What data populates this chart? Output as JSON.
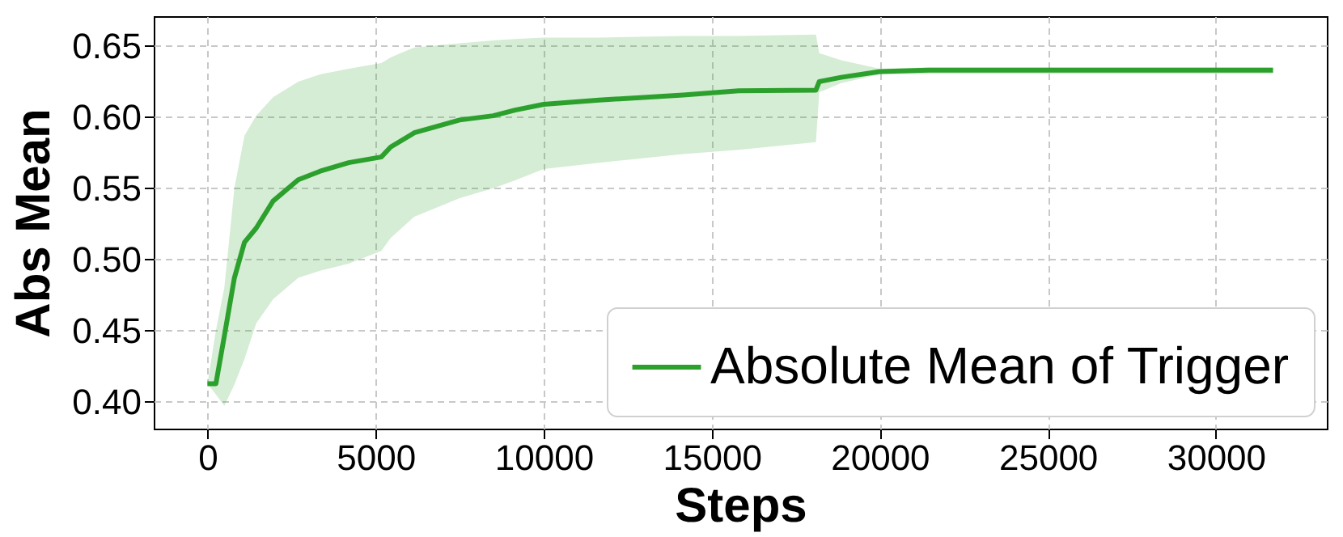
{
  "chart_data": {
    "type": "line",
    "xlabel": "Steps",
    "ylabel": "Abs Mean",
    "x": [
      0,
      250,
      500,
      800,
      1100,
      1450,
      1950,
      2700,
      3350,
      4200,
      5170,
      5450,
      6150,
      7500,
      8500,
      9150,
      10000,
      11650,
      14150,
      15800,
      18100,
      18200,
      18850,
      20000,
      21450,
      31700
    ],
    "series": [
      {
        "name": "Absolute Mean of Trigger",
        "color": "#2ca02c",
        "values": [
          0.4125,
          0.4125,
          0.446,
          0.487,
          0.512,
          0.522,
          0.541,
          0.556,
          0.562,
          0.568,
          0.572,
          0.579,
          0.589,
          0.598,
          0.601,
          0.605,
          0.609,
          0.612,
          0.6155,
          0.6185,
          0.619,
          0.625,
          0.628,
          0.632,
          0.633,
          0.633
        ],
        "upper": [
          0.4125,
          0.45,
          0.48,
          0.55,
          0.587,
          0.601,
          0.614,
          0.625,
          0.63,
          0.634,
          0.638,
          0.642,
          0.649,
          0.652,
          0.654,
          0.655,
          0.656,
          0.656,
          0.657,
          0.657,
          0.658,
          0.645,
          0.64,
          0.634,
          0.635,
          0.635
        ],
        "lower": [
          0.4125,
          0.405,
          0.397,
          0.412,
          0.43,
          0.455,
          0.472,
          0.487,
          0.492,
          0.497,
          0.506,
          0.515,
          0.53,
          0.543,
          0.55,
          0.5555,
          0.5635,
          0.568,
          0.574,
          0.577,
          0.5825,
          0.6175,
          0.624,
          0.63,
          0.6305,
          0.6305
        ]
      }
    ],
    "xlim": [
      -1600,
      33300
    ],
    "ylim": [
      0.381,
      0.671
    ],
    "xticks": [
      0,
      5000,
      10000,
      15000,
      20000,
      25000,
      30000
    ],
    "yticks": [
      {
        "value": 0.4,
        "label": "0.40"
      },
      {
        "value": 0.45,
        "label": "0.45"
      },
      {
        "value": 0.5,
        "label": "0.50"
      },
      {
        "value": 0.55,
        "label": "0.55"
      },
      {
        "value": 0.6,
        "label": "0.60"
      },
      {
        "value": 0.65,
        "label": "0.65"
      }
    ],
    "grid": true,
    "legend": "bottom right",
    "line_style": "solid"
  }
}
